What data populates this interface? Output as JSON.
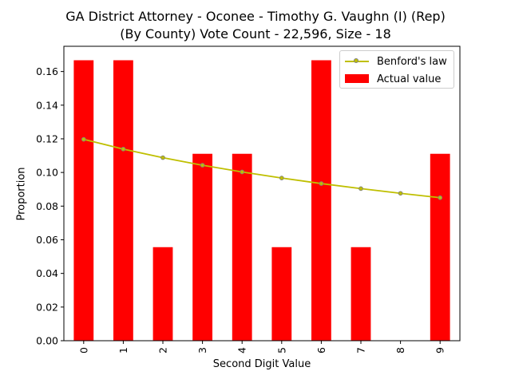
{
  "chart_data": {
    "type": "bar",
    "title": "GA District Attorney - Oconee - Timothy G. Vaughn (I) (Rep)",
    "subtitle": "(By County) Vote Count - 22,596, Size - 18",
    "xlabel": "Second Digit Value",
    "ylabel": "Proportion",
    "categories": [
      "0",
      "1",
      "2",
      "3",
      "4",
      "5",
      "6",
      "7",
      "8",
      "9"
    ],
    "ylim": [
      0,
      0.175
    ],
    "yticks": [
      "0.00",
      "0.02",
      "0.04",
      "0.06",
      "0.08",
      "0.10",
      "0.12",
      "0.14",
      "0.16"
    ],
    "legend_position": "top-right",
    "grid": false,
    "series": [
      {
        "name": "Actual value",
        "kind": "bar",
        "color": "#ff0000",
        "values": [
          0.1667,
          0.1667,
          0.0556,
          0.1111,
          0.1111,
          0.0556,
          0.1667,
          0.0556,
          0.0,
          0.1111
        ]
      },
      {
        "name": "Benford's law",
        "kind": "line",
        "color": "#bfbf00",
        "marker_edge_color": "#808080",
        "values": [
          0.1197,
          0.1139,
          0.1088,
          0.1043,
          0.1003,
          0.0967,
          0.0934,
          0.0904,
          0.0876,
          0.085
        ]
      }
    ]
  }
}
